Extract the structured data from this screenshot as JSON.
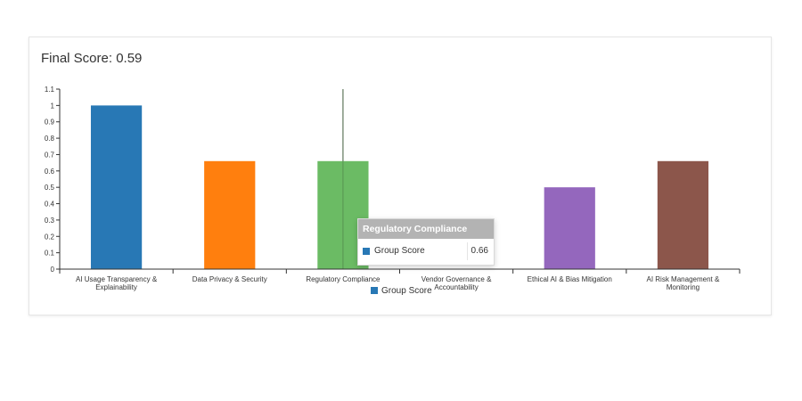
{
  "header": {
    "final_score": "Final Score: 0.59"
  },
  "tooltip": {
    "title": "Regulatory Compliance",
    "series_name": "Group Score",
    "value": "0.66",
    "swatch_color": "#2878b5"
  },
  "chart_data": {
    "type": "bar",
    "categories": [
      [
        "AI Usage Transparency &",
        "Explainability"
      ],
      [
        "Data Privacy & Security"
      ],
      [
        "Regulatory Compliance"
      ],
      [
        "Vendor Governance &",
        "Accountability"
      ],
      [
        "Ethical AI & Bias Mitigation"
      ],
      [
        "AI Risk Management &",
        "Monitoring"
      ]
    ],
    "series": [
      {
        "name": "Group Score",
        "values": [
          1.0,
          0.66,
          0.66,
          0,
          0.5,
          0.66
        ]
      }
    ],
    "bar_colors": [
      "#2878b5",
      "#ff7f0e",
      "#6bbb64",
      "#c5b0d5",
      "#9467bd",
      "#8c564b"
    ],
    "ylim": [
      0,
      1.1
    ],
    "yticks": [
      "0",
      "0.1",
      "0.2",
      "0.3",
      "0.4",
      "0.5",
      "0.6",
      "0.7",
      "0.8",
      "0.9",
      "1",
      "1.1"
    ],
    "ytick_values": [
      0,
      0.1,
      0.2,
      0.3,
      0.4,
      0.5,
      0.6,
      0.7,
      0.8,
      0.9,
      1.0,
      1.1
    ],
    "legend": {
      "label": "Group Score",
      "color": "#2878b5",
      "placement": "bottom-center"
    },
    "grid": false,
    "hover_category_index": 2
  }
}
